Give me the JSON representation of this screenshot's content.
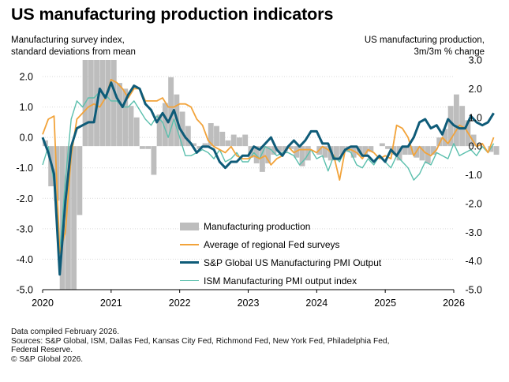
{
  "header": {
    "title": "US manufacturing production indicators",
    "left_axis_title_line1": "Manufacturing survey index,",
    "left_axis_title_line2": "standard deviations from mean",
    "right_axis_title_line1": "US manufacturing production,",
    "right_axis_title_line2": "3m/3m % change"
  },
  "footer": {
    "line1": "Data compiled February 2026.",
    "line2": "Sources: S&P Global, ISM, Dallas Fed, Kansas City Fed, Richmond Fed, New York Fed, Philadelphia Fed,",
    "line3": "Federal Reserve.",
    "line4": "© S&P Global 2026."
  },
  "colors": {
    "bars": "#bdbdbd",
    "fed_surveys": "#f2a33a",
    "sp_global_pmi": "#0e5b78",
    "ism_pmi": "#5bbfad",
    "gridline": "#d9d9d9",
    "text": "#000000"
  },
  "chart_data": {
    "type": "bar+line",
    "left_axis": {
      "ylim": [
        -5.0,
        2.5
      ],
      "ticks": [
        2.0,
        1.0,
        0.0,
        -1.0,
        -2.0,
        -3.0,
        -4.0,
        -5.0
      ],
      "tick_labels": [
        "2.0",
        "1.0",
        "0.0",
        "-1.0",
        "-2.0",
        "-3.0",
        "-4.0",
        "-5.0"
      ]
    },
    "right_axis": {
      "ylim": [
        -5.0,
        3.0
      ],
      "ticks": [
        3.0,
        2.0,
        1.0,
        0.0,
        -1.0,
        -2.0,
        -3.0,
        -4.0,
        -5.0
      ],
      "tick_labels": [
        "3.0",
        "2.0",
        "1.0",
        "0.0",
        "-1.0",
        "-2.0",
        "-3.0",
        "-4.0",
        "-5.0"
      ]
    },
    "x_axis": {
      "start": 2020.0,
      "end": 2026.0,
      "tick_labels": [
        "2020",
        "2021",
        "2022",
        "2023",
        "2024",
        "2025",
        "2026"
      ]
    },
    "grid": "horizontal dotted",
    "legend_position": "bottom-center",
    "series": [
      {
        "name": "Manufacturing production",
        "kind": "bar",
        "axis": "right",
        "start": 2020.0,
        "step": 0.08333,
        "values": [
          0.2,
          -1.4,
          -1.9,
          -5.0,
          -5.0,
          -5.0,
          -2.4,
          3.0,
          3.0,
          3.0,
          3.0,
          3.0,
          3.0,
          2.2,
          2.0,
          1.4,
          1.0,
          -0.1,
          -0.1,
          -1.0,
          1.1,
          1.5,
          2.4,
          1.8,
          1.2,
          0.7,
          0.1,
          -0.1,
          0.1,
          0.8,
          0.7,
          0.5,
          0.2,
          0.4,
          0.3,
          0.4,
          -0.4,
          -0.6,
          -0.9,
          -0.6,
          -0.3,
          -0.2,
          -0.2,
          -0.1,
          -0.4,
          -0.7,
          -0.5,
          0.0,
          -0.3,
          -0.4,
          -0.5,
          -0.5,
          -0.3,
          -0.2,
          -0.4,
          -0.3,
          -0.3,
          -0.2,
          0.0,
          0.1,
          -0.1,
          -0.3,
          -0.5,
          -0.3,
          -0.3,
          -0.4,
          -0.5,
          -0.6,
          -0.3,
          0.3,
          0.6,
          1.4,
          1.8,
          1.4,
          0.9,
          0.4,
          0.1,
          0.0,
          -0.2,
          -0.3
        ]
      },
      {
        "name": "Average of regional Fed surveys",
        "kind": "line",
        "axis": "left",
        "start": 2020.0,
        "step": 0.08333,
        "values": [
          0.1,
          0.6,
          0.7,
          -3.8,
          -3.1,
          -0.6,
          0.6,
          0.8,
          1.0,
          1.1,
          1.0,
          1.3,
          1.9,
          1.8,
          1.6,
          1.3,
          1.6,
          1.6,
          1.2,
          1.2,
          1.2,
          1.3,
          1.0,
          1.0,
          1.1,
          1.1,
          1.0,
          0.6,
          0.4,
          -0.1,
          -0.3,
          -0.4,
          -0.5,
          -0.3,
          -0.6,
          -0.7,
          -0.7,
          -0.6,
          -0.7,
          -0.6,
          -0.9,
          -0.7,
          -0.6,
          -0.3,
          -0.5,
          -0.4,
          -0.4,
          -0.4,
          -0.5,
          -0.3,
          -0.4,
          -0.6,
          -1.4,
          -0.4,
          -0.4,
          -0.5,
          -0.7,
          -0.4,
          -0.5,
          -0.7,
          -0.6,
          -0.7,
          0.4,
          0.3,
          0.0,
          -0.6,
          -0.3,
          -0.5,
          -0.6,
          -0.4,
          0.0,
          -0.2,
          0.1,
          0.4,
          0.3,
          0.0,
          -0.3,
          -0.2,
          -0.5,
          0.0
        ]
      },
      {
        "name": "S&P Global US Manufacturing PMI Output",
        "kind": "line",
        "axis": "left",
        "start": 2020.0,
        "step": 0.08333,
        "values": [
          0.0,
          -0.5,
          -1.2,
          -4.5,
          -2.1,
          -0.3,
          0.3,
          0.4,
          0.5,
          0.5,
          1.6,
          1.3,
          1.8,
          1.3,
          1.0,
          1.4,
          1.7,
          1.6,
          1.1,
          0.9,
          0.5,
          0.8,
          0.5,
          0.9,
          0.3,
          0.0,
          -0.2,
          -0.5,
          -0.3,
          -0.3,
          -0.4,
          -0.8,
          -1.0,
          -0.8,
          -0.8,
          -0.6,
          -0.6,
          -0.3,
          -0.4,
          -0.2,
          0.0,
          -0.4,
          -0.6,
          -0.3,
          -0.1,
          -0.3,
          -0.1,
          0.2,
          0.2,
          -0.2,
          -0.2,
          -0.7,
          -0.7,
          -0.4,
          -0.3,
          -0.3,
          -0.6,
          -0.6,
          -0.8,
          -0.6,
          -0.8,
          -0.4,
          -0.6,
          -0.3,
          -0.3,
          0.0,
          0.5,
          0.6,
          0.3,
          0.4,
          0.1,
          0.6,
          0.4,
          0.3,
          0.3,
          0.7,
          0.5,
          0.4,
          0.5,
          0.8
        ]
      },
      {
        "name": "ISM Manufacturing PMI output index",
        "kind": "line",
        "axis": "left",
        "start": 2020.0,
        "step": 0.08333,
        "values": [
          -0.9,
          -0.3,
          -1.5,
          -3.8,
          -1.4,
          0.6,
          1.2,
          1.0,
          1.3,
          1.3,
          1.5,
          1.4,
          1.2,
          1.2,
          1.0,
          1.0,
          1.2,
          0.9,
          0.6,
          0.4,
          0.7,
          0.5,
          0.0,
          0.6,
          0.0,
          -0.6,
          -0.6,
          -0.5,
          -0.4,
          -0.5,
          -0.7,
          -0.4,
          -0.8,
          -0.7,
          -0.5,
          -0.8,
          -0.8,
          -0.5,
          -0.7,
          -0.3,
          -0.4,
          -0.6,
          -0.5,
          -0.5,
          -0.6,
          -0.9,
          -0.7,
          -0.4,
          -0.7,
          -0.6,
          -1.1,
          -0.6,
          -0.8,
          -0.4,
          -0.5,
          -0.9,
          -1.0,
          -0.7,
          -0.9,
          -0.6,
          -0.8,
          -1.0,
          -0.6,
          -0.8,
          -1.0,
          -1.4,
          -1.2,
          -0.8,
          -0.9,
          -0.5,
          -0.6,
          -0.7,
          -0.2,
          -0.6,
          -0.5,
          -0.4,
          -0.6,
          -0.3,
          -0.5,
          -0.2
        ]
      }
    ]
  }
}
